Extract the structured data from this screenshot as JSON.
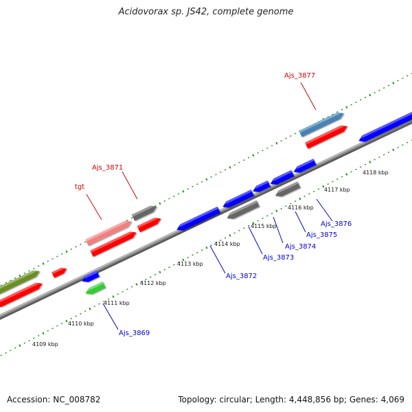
{
  "title": "Acidovorax sp. JS42, complete genome",
  "footer": {
    "accession": "Accession: NC_008782",
    "summary": "Topology: circular; Length: 4,448,856 bp; Genes: 4,069"
  },
  "colors": {
    "backbone": "#8c8c8c",
    "tick": "#2e8b2e",
    "forward_label": "#cc0000",
    "reverse_label": "#0000cc",
    "leader_forward": "#cc0000",
    "leader_reverse": "#0000cc"
  },
  "axis": {
    "unit": "kbp",
    "labels": [
      "4109 kbp",
      "4110 kbp",
      "4111 kbp",
      "4112 kbp",
      "4113 kbp",
      "4114 kbp",
      "4115 kbp",
      "4116 kbp",
      "4117 kbp",
      "4118 kbp"
    ]
  },
  "features": [
    {
      "name": "olive-gene",
      "color": "#6b8e23",
      "strand": "forward"
    },
    {
      "name": "red-gene-a",
      "color": "#ff0000",
      "strand": "forward"
    },
    {
      "name": "red-gene-b",
      "color": "#ff0000",
      "strand": "forward"
    },
    {
      "name": "tgt-gene",
      "color": "#f08080",
      "strand": "forward"
    },
    {
      "name": "red-gene-c",
      "color": "#ff0000",
      "strand": "forward"
    },
    {
      "name": "Ajs_3871-gene",
      "color": "#666666",
      "strand": "forward"
    },
    {
      "name": "red-gene-d",
      "color": "#ff0000",
      "strand": "forward"
    },
    {
      "name": "Ajs_3877-gene",
      "color": "#4682b4",
      "strand": "forward"
    },
    {
      "name": "red-gene-e",
      "color": "#ff0000",
      "strand": "forward"
    },
    {
      "name": "blue-gene-right",
      "color": "#0000ff",
      "strand": "reverse"
    },
    {
      "name": "Ajs_3869-blue",
      "color": "#0000ff",
      "strand": "reverse"
    },
    {
      "name": "Ajs_3869-green",
      "color": "#32cd32",
      "strand": "reverse"
    },
    {
      "name": "Ajs_3872-gene",
      "color": "#0000ff",
      "strand": "reverse"
    },
    {
      "name": "Ajs_3873-upper",
      "color": "#0000ff",
      "strand": "reverse"
    },
    {
      "name": "Ajs_3873-lower",
      "color": "#666666",
      "strand": "reverse"
    },
    {
      "name": "Ajs_3874-gene",
      "color": "#0000ff",
      "strand": "reverse"
    },
    {
      "name": "Ajs_3875-upper",
      "color": "#0000ff",
      "strand": "reverse"
    },
    {
      "name": "Ajs_3875-lower",
      "color": "#666666",
      "strand": "reverse"
    },
    {
      "name": "Ajs_3876-gene",
      "color": "#0000ff",
      "strand": "reverse"
    }
  ],
  "labels": [
    {
      "name": "label-tgt",
      "text": "tgt",
      "strand": "forward"
    },
    {
      "name": "label-ajs-3871",
      "text": "Ajs_3871",
      "strand": "forward"
    },
    {
      "name": "label-ajs-3877",
      "text": "Ajs_3877",
      "strand": "forward"
    },
    {
      "name": "label-ajs-3869",
      "text": "Ajs_3869",
      "strand": "reverse"
    },
    {
      "name": "label-ajs-3872",
      "text": "Ajs_3872",
      "strand": "reverse"
    },
    {
      "name": "label-ajs-3873",
      "text": "Ajs_3873",
      "strand": "reverse"
    },
    {
      "name": "label-ajs-3874",
      "text": "Ajs_3874",
      "strand": "reverse"
    },
    {
      "name": "label-ajs-3875",
      "text": "Ajs_3875",
      "strand": "reverse"
    },
    {
      "name": "label-ajs-3876",
      "text": "Ajs_3876",
      "strand": "reverse"
    }
  ]
}
